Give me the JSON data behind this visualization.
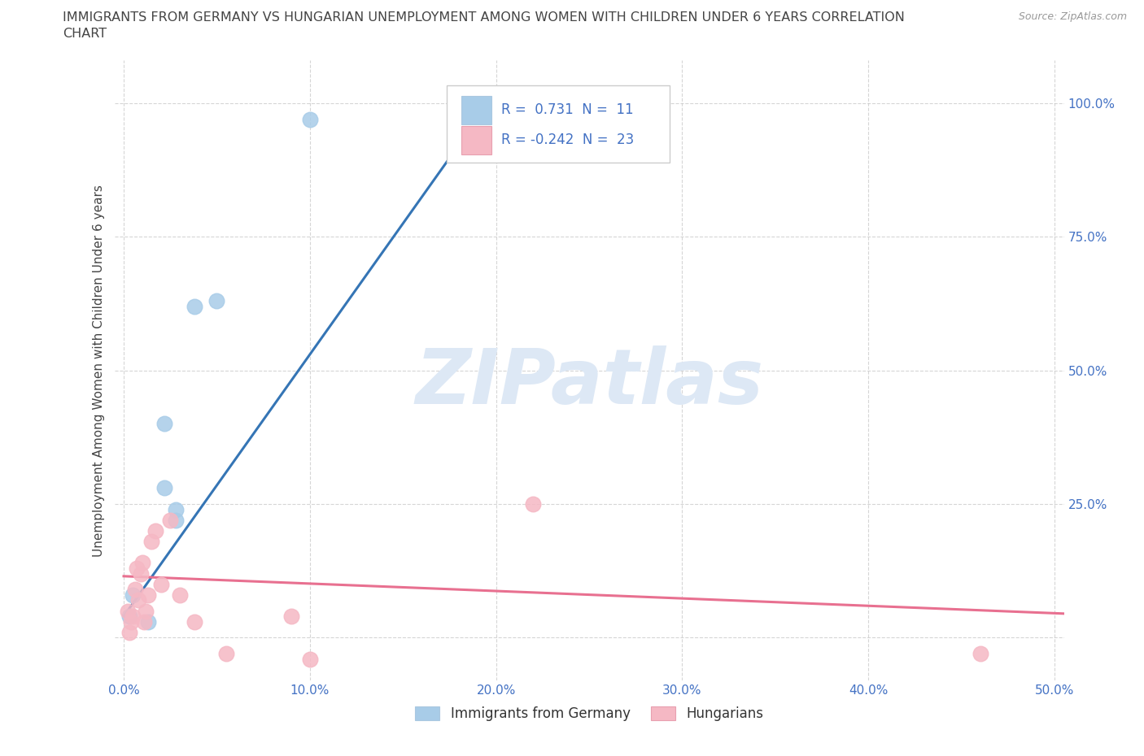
{
  "title_line1": "IMMIGRANTS FROM GERMANY VS HUNGARIAN UNEMPLOYMENT AMONG WOMEN WITH CHILDREN UNDER 6 YEARS CORRELATION",
  "title_line2": "CHART",
  "source": "Source: ZipAtlas.com",
  "ylabel": "Unemployment Among Women with Children Under 6 years",
  "watermark": "ZIPatlas",
  "legend_blue_R": "0.731",
  "legend_blue_N": "11",
  "legend_pink_R": "-0.242",
  "legend_pink_N": "23",
  "xlim": [
    -0.005,
    0.505
  ],
  "ylim": [
    -0.08,
    1.08
  ],
  "xticks": [
    0.0,
    0.1,
    0.2,
    0.3,
    0.4,
    0.5
  ],
  "yticks": [
    0.0,
    0.25,
    0.5,
    0.75,
    1.0
  ],
  "xticklabels": [
    "0.0%",
    "10.0%",
    "20.0%",
    "30.0%",
    "40.0%",
    "50.0%"
  ],
  "right_yticklabels": [
    "",
    "25.0%",
    "50.0%",
    "75.0%",
    "100.0%"
  ],
  "blue_color": "#a8cce8",
  "pink_color": "#f5b8c4",
  "blue_line_color": "#3575b5",
  "pink_line_color": "#e87090",
  "blue_points_x": [
    0.003,
    0.005,
    0.013,
    0.022,
    0.022,
    0.028,
    0.028,
    0.038,
    0.05,
    0.1,
    0.18
  ],
  "blue_points_y": [
    0.04,
    0.08,
    0.03,
    0.4,
    0.28,
    0.22,
    0.24,
    0.62,
    0.63,
    0.97,
    0.97
  ],
  "pink_points_x": [
    0.002,
    0.003,
    0.004,
    0.005,
    0.006,
    0.007,
    0.008,
    0.009,
    0.01,
    0.011,
    0.012,
    0.013,
    0.015,
    0.017,
    0.02,
    0.025,
    0.03,
    0.038,
    0.055,
    0.09,
    0.1,
    0.22,
    0.46
  ],
  "pink_points_y": [
    0.05,
    0.01,
    0.03,
    0.04,
    0.09,
    0.13,
    0.07,
    0.12,
    0.14,
    0.03,
    0.05,
    0.08,
    0.18,
    0.2,
    0.1,
    0.22,
    0.08,
    0.03,
    -0.03,
    0.04,
    -0.04,
    0.25,
    -0.03
  ],
  "blue_trend_x": [
    0.0,
    0.2
  ],
  "blue_trend_y": [
    0.04,
    1.02
  ],
  "pink_trend_x": [
    0.0,
    0.505
  ],
  "pink_trend_y": [
    0.115,
    0.045
  ],
  "background_color": "#ffffff",
  "grid_color": "#cccccc",
  "title_color": "#444444",
  "axis_label_color": "#444444",
  "tick_color": "#4472c4",
  "watermark_color": "#dde8f5",
  "legend_text_color": "#4472c4",
  "legend_label_color": "#333333"
}
